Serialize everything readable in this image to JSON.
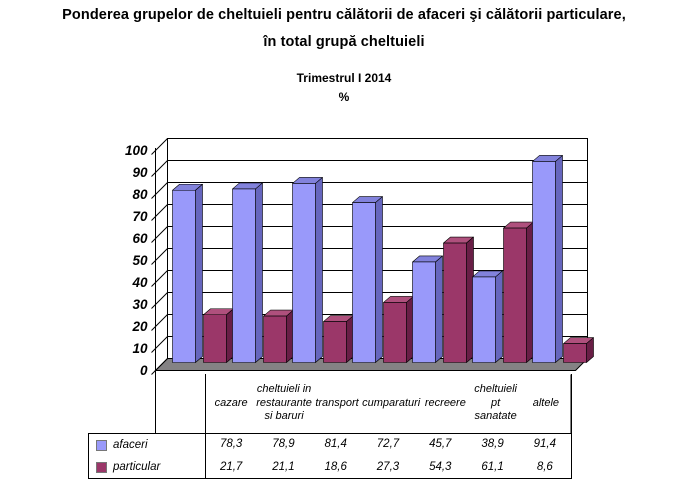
{
  "chart_data": {
    "type": "bar",
    "style": "3d-clustered-column",
    "title_lines": [
      "Ponderea grupelor de cheltuieli pentru călătorii de afaceri şi călătorii particulare,",
      "în total grupă cheltuieli"
    ],
    "subtitle": "Trimestrul I 2014",
    "unit_label": "%",
    "categories": [
      "cazare",
      "cheltuieli in restaurante si baruri",
      "transport",
      "cumparaturi",
      "recreere",
      "cheltuieli pt sanatate",
      "altele"
    ],
    "series": [
      {
        "name": "afaceri",
        "color": "#9999FA",
        "color_top": "#8282DC",
        "color_side": "#6666BE",
        "values": [
          78.3,
          78.9,
          81.4,
          72.7,
          45.7,
          38.9,
          91.4
        ]
      },
      {
        "name": "particular",
        "color": "#9B3769",
        "color_top": "#AF507D",
        "color_side": "#691E46",
        "values": [
          21.7,
          21.1,
          18.6,
          27.3,
          54.3,
          61.1,
          8.6
        ]
      }
    ],
    "ylim": [
      0,
      100
    ],
    "ytick_step": 10,
    "grid": true,
    "legend_position": "table-left",
    "floor_color": "#848284",
    "wall_color": "#ffffff",
    "axis_color": "#000000"
  },
  "table": {
    "headers": [
      "cazare",
      "cheltuieli in\nrestaurante\nsi baruri",
      "transport",
      "cumparaturi",
      "recreere",
      "cheltuieli pt\nsanatate",
      "altele"
    ],
    "rows": [
      {
        "label": "afaceri",
        "values": [
          "78,3",
          "78,9",
          "81,4",
          "72,7",
          "45,7",
          "38,9",
          "91,4"
        ]
      },
      {
        "label": "particular",
        "values": [
          "21,7",
          "21,1",
          "18,6",
          "27,3",
          "54,3",
          "61,1",
          "8,6"
        ]
      }
    ]
  }
}
